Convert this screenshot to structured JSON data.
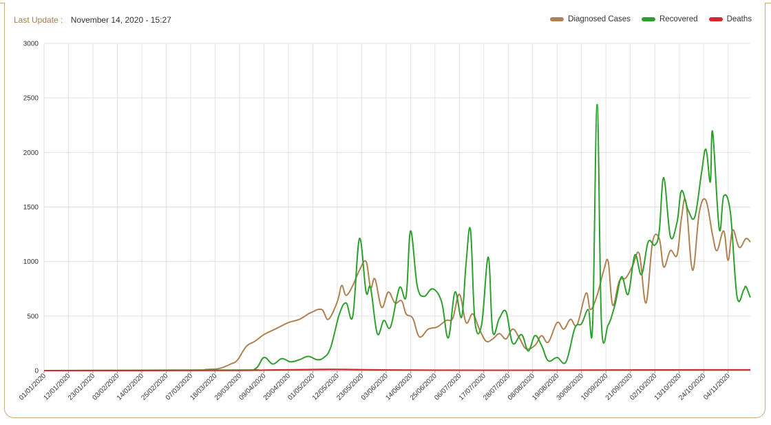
{
  "header": {
    "last_update_label": "Last Update :",
    "last_update_value": "November 14, 2020 - 15:27"
  },
  "colors": {
    "diagnosed": "#b08150",
    "recovered": "#2ca02c",
    "deaths": "#d62728",
    "accent": "#c8a77a"
  },
  "chart_data": {
    "type": "line",
    "title": "",
    "xlabel": "",
    "ylabel": "",
    "ylim": [
      0,
      3000
    ],
    "y_ticks": [
      0,
      500,
      1000,
      1500,
      2000,
      2500,
      3000
    ],
    "x_start": "2020-01-01",
    "x_end": "2020-11-14",
    "x_tick_labels": [
      "01/01/2020",
      "12/01/2020",
      "23/01/2020",
      "03/02/2020",
      "14/02/2020",
      "25/02/2020",
      "07/03/2020",
      "18/03/2020",
      "29/03/2020",
      "09/04/2020",
      "20/04/2020",
      "01/05/2020",
      "12/05/2020",
      "23/05/2020",
      "03/06/2020",
      "14/06/2020",
      "25/06/2020",
      "06/07/2020",
      "17/07/2020",
      "28/07/2020",
      "08/08/2020",
      "19/08/2020",
      "30/08/2020",
      "10/09/2020",
      "21/09/2020",
      "02/10/2020",
      "13/10/2020",
      "24/10/2020",
      "04/11/2020"
    ],
    "grid": true,
    "legend_position": "top-right",
    "series": [
      {
        "name": "Diagnosed Cases",
        "points": [
          [
            "2020-01-01",
            0
          ],
          [
            "2020-03-07",
            5
          ],
          [
            "2020-03-14",
            10
          ],
          [
            "2020-03-20",
            20
          ],
          [
            "2020-03-25",
            60
          ],
          [
            "2020-03-28",
            95
          ],
          [
            "2020-04-01",
            220
          ],
          [
            "2020-04-05",
            270
          ],
          [
            "2020-04-09",
            330
          ],
          [
            "2020-04-15",
            390
          ],
          [
            "2020-04-20",
            440
          ],
          [
            "2020-04-25",
            470
          ],
          [
            "2020-04-30",
            530
          ],
          [
            "2020-05-05",
            560
          ],
          [
            "2020-05-08",
            470
          ],
          [
            "2020-05-12",
            630
          ],
          [
            "2020-05-14",
            780
          ],
          [
            "2020-05-16",
            690
          ],
          [
            "2020-05-19",
            780
          ],
          [
            "2020-05-22",
            920
          ],
          [
            "2020-05-25",
            1000
          ],
          [
            "2020-05-27",
            760
          ],
          [
            "2020-05-29",
            840
          ],
          [
            "2020-06-01",
            580
          ],
          [
            "2020-06-04",
            720
          ],
          [
            "2020-06-07",
            620
          ],
          [
            "2020-06-10",
            640
          ],
          [
            "2020-06-12",
            520
          ],
          [
            "2020-06-15",
            480
          ],
          [
            "2020-06-18",
            310
          ],
          [
            "2020-06-22",
            380
          ],
          [
            "2020-06-26",
            400
          ],
          [
            "2020-06-30",
            460
          ],
          [
            "2020-07-03",
            480
          ],
          [
            "2020-07-06",
            700
          ],
          [
            "2020-07-09",
            440
          ],
          [
            "2020-07-12",
            520
          ],
          [
            "2020-07-15",
            380
          ],
          [
            "2020-07-18",
            270
          ],
          [
            "2020-07-21",
            290
          ],
          [
            "2020-07-24",
            340
          ],
          [
            "2020-07-27",
            290
          ],
          [
            "2020-07-30",
            380
          ],
          [
            "2020-08-02",
            300
          ],
          [
            "2020-08-05",
            200
          ],
          [
            "2020-08-09",
            230
          ],
          [
            "2020-08-12",
            320
          ],
          [
            "2020-08-15",
            260
          ],
          [
            "2020-08-19",
            440
          ],
          [
            "2020-08-22",
            380
          ],
          [
            "2020-08-25",
            470
          ],
          [
            "2020-08-28",
            420
          ],
          [
            "2020-09-01",
            710
          ],
          [
            "2020-09-03",
            560
          ],
          [
            "2020-09-06",
            690
          ],
          [
            "2020-09-09",
            920
          ],
          [
            "2020-09-11",
            1000
          ],
          [
            "2020-09-13",
            600
          ],
          [
            "2020-09-16",
            820
          ],
          [
            "2020-09-19",
            850
          ],
          [
            "2020-09-22",
            960
          ],
          [
            "2020-09-25",
            1070
          ],
          [
            "2020-09-28",
            620
          ],
          [
            "2020-10-01",
            1180
          ],
          [
            "2020-10-04",
            1210
          ],
          [
            "2020-10-06",
            950
          ],
          [
            "2020-10-09",
            1100
          ],
          [
            "2020-10-12",
            1060
          ],
          [
            "2020-10-14",
            1400
          ],
          [
            "2020-10-16",
            1550
          ],
          [
            "2020-10-19",
            920
          ],
          [
            "2020-10-22",
            1450
          ],
          [
            "2020-10-25",
            1560
          ],
          [
            "2020-10-28",
            1240
          ],
          [
            "2020-10-30",
            1100
          ],
          [
            "2020-11-02",
            1280
          ],
          [
            "2020-11-04",
            1010
          ],
          [
            "2020-11-06",
            1290
          ],
          [
            "2020-11-09",
            1130
          ],
          [
            "2020-11-12",
            1210
          ],
          [
            "2020-11-14",
            1180
          ]
        ]
      },
      {
        "name": "Recovered",
        "points": [
          [
            "2020-01-01",
            0
          ],
          [
            "2020-03-28",
            5
          ],
          [
            "2020-04-05",
            15
          ],
          [
            "2020-04-09",
            120
          ],
          [
            "2020-04-13",
            60
          ],
          [
            "2020-04-17",
            110
          ],
          [
            "2020-04-21",
            80
          ],
          [
            "2020-04-25",
            100
          ],
          [
            "2020-04-29",
            130
          ],
          [
            "2020-05-03",
            100
          ],
          [
            "2020-05-06",
            120
          ],
          [
            "2020-05-09",
            210
          ],
          [
            "2020-05-13",
            520
          ],
          [
            "2020-05-16",
            620
          ],
          [
            "2020-05-19",
            500
          ],
          [
            "2020-05-22",
            1210
          ],
          [
            "2020-05-25",
            720
          ],
          [
            "2020-05-27",
            760
          ],
          [
            "2020-05-30",
            340
          ],
          [
            "2020-06-02",
            460
          ],
          [
            "2020-06-05",
            400
          ],
          [
            "2020-06-09",
            760
          ],
          [
            "2020-06-12",
            680
          ],
          [
            "2020-06-14",
            1280
          ],
          [
            "2020-06-17",
            780
          ],
          [
            "2020-06-20",
            680
          ],
          [
            "2020-06-24",
            750
          ],
          [
            "2020-06-28",
            630
          ],
          [
            "2020-07-01",
            300
          ],
          [
            "2020-07-04",
            720
          ],
          [
            "2020-07-07",
            490
          ],
          [
            "2020-07-09",
            980
          ],
          [
            "2020-07-11",
            1290
          ],
          [
            "2020-07-13",
            450
          ],
          [
            "2020-07-16",
            420
          ],
          [
            "2020-07-19",
            1040
          ],
          [
            "2020-07-21",
            360
          ],
          [
            "2020-07-24",
            480
          ],
          [
            "2020-07-27",
            540
          ],
          [
            "2020-07-30",
            250
          ],
          [
            "2020-08-03",
            330
          ],
          [
            "2020-08-06",
            180
          ],
          [
            "2020-08-09",
            320
          ],
          [
            "2020-08-12",
            230
          ],
          [
            "2020-08-15",
            90
          ],
          [
            "2020-08-19",
            120
          ],
          [
            "2020-08-23",
            80
          ],
          [
            "2020-08-27",
            390
          ],
          [
            "2020-08-30",
            430
          ],
          [
            "2020-09-02",
            560
          ],
          [
            "2020-09-04",
            420
          ],
          [
            "2020-09-06",
            2440
          ],
          [
            "2020-09-08",
            420
          ],
          [
            "2020-09-11",
            420
          ],
          [
            "2020-09-14",
            600
          ],
          [
            "2020-09-17",
            860
          ],
          [
            "2020-09-20",
            700
          ],
          [
            "2020-09-23",
            1060
          ],
          [
            "2020-09-26",
            880
          ],
          [
            "2020-09-29",
            1180
          ],
          [
            "2020-10-02",
            1150
          ],
          [
            "2020-10-04",
            1280
          ],
          [
            "2020-10-06",
            1770
          ],
          [
            "2020-10-09",
            1230
          ],
          [
            "2020-10-12",
            1360
          ],
          [
            "2020-10-14",
            1650
          ],
          [
            "2020-10-17",
            1470
          ],
          [
            "2020-10-20",
            1410
          ],
          [
            "2020-10-23",
            1810
          ],
          [
            "2020-10-25",
            2030
          ],
          [
            "2020-10-27",
            1730
          ],
          [
            "2020-10-28",
            2190
          ],
          [
            "2020-10-31",
            1300
          ],
          [
            "2020-11-02",
            1600
          ],
          [
            "2020-11-05",
            1450
          ],
          [
            "2020-11-08",
            680
          ],
          [
            "2020-11-11",
            740
          ],
          [
            "2020-11-12",
            770
          ],
          [
            "2020-11-14",
            670
          ]
        ]
      },
      {
        "name": "Deaths",
        "points": [
          [
            "2020-01-01",
            0
          ],
          [
            "2020-03-20",
            1
          ],
          [
            "2020-04-15",
            6
          ],
          [
            "2020-05-01",
            10
          ],
          [
            "2020-05-10",
            12
          ],
          [
            "2020-06-01",
            6
          ],
          [
            "2020-07-01",
            4
          ],
          [
            "2020-08-01",
            3
          ],
          [
            "2020-09-01",
            5
          ],
          [
            "2020-10-01",
            6
          ],
          [
            "2020-11-01",
            7
          ],
          [
            "2020-11-14",
            7
          ]
        ]
      }
    ]
  }
}
